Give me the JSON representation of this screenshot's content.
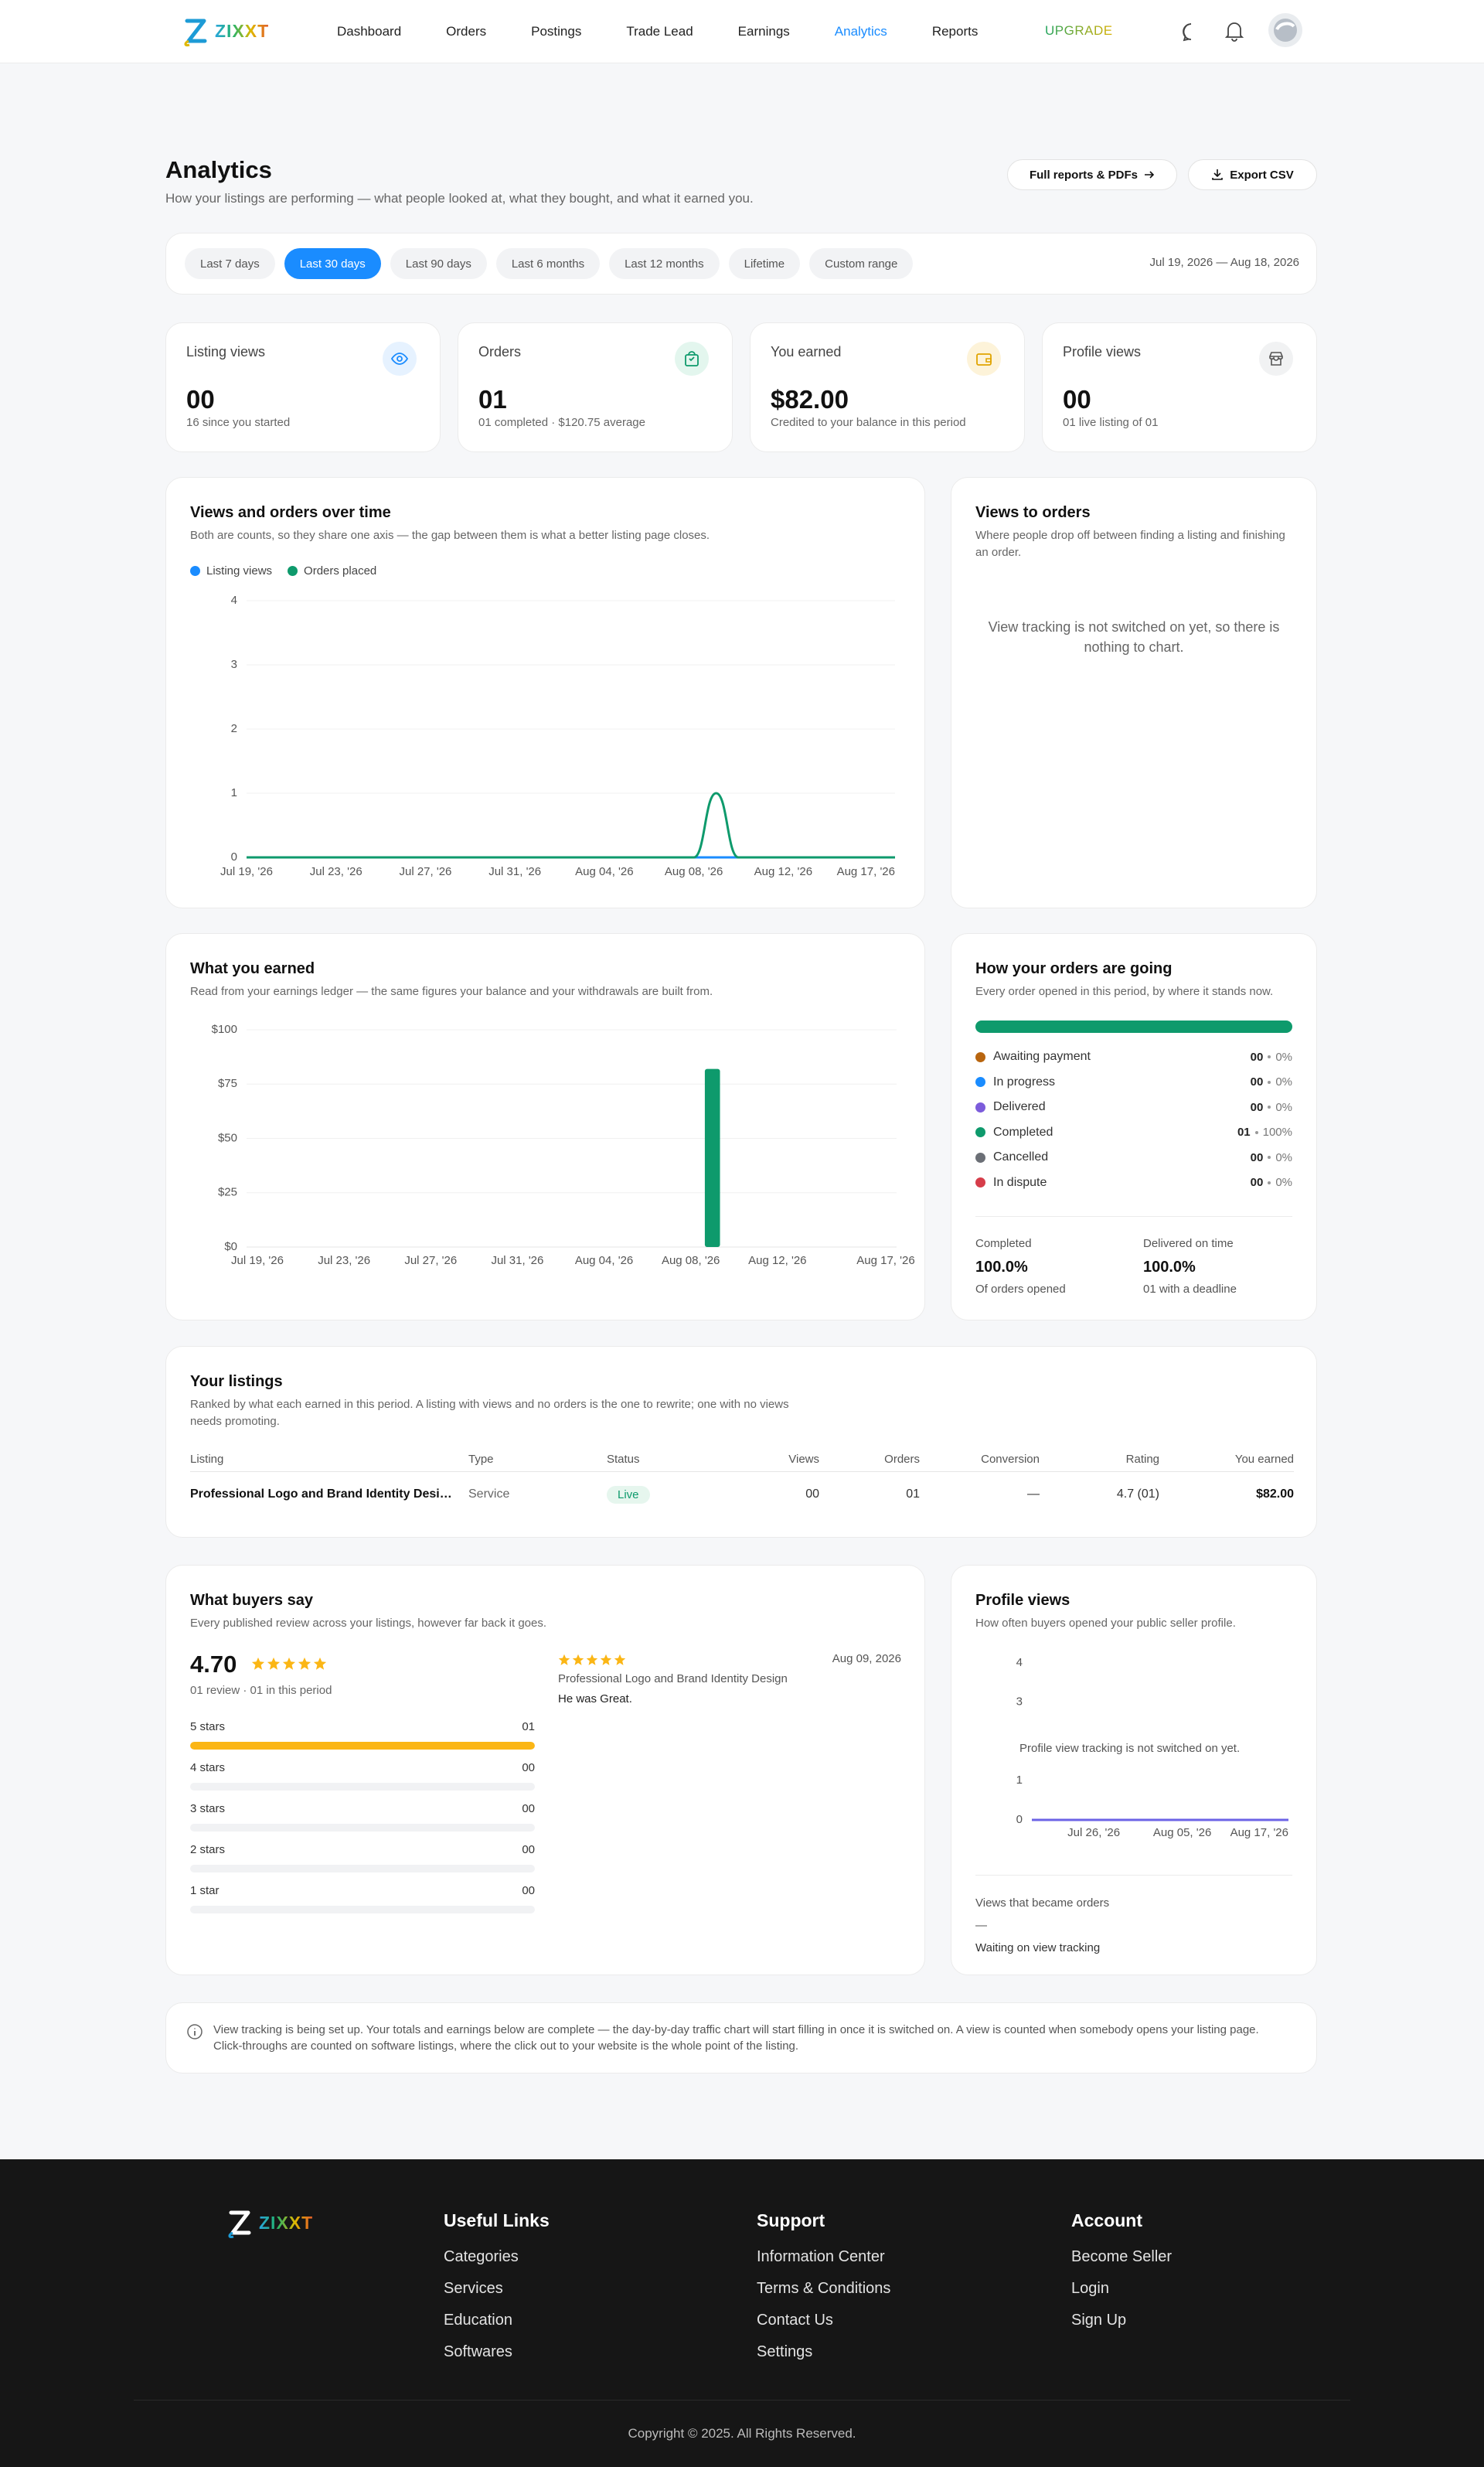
{
  "nav": {
    "brand": "ZIXXT",
    "items": [
      "Dashboard",
      "Orders",
      "Postings",
      "Trade Lead",
      "Earnings",
      "Analytics",
      "Reports"
    ],
    "active": 5,
    "upgrade": "UPGRADE"
  },
  "header": {
    "title": "Analytics",
    "subtitle": "How your listings are performing — what people looked at, what they bought, and what it earned you.",
    "actions": [
      "Full reports & PDFs",
      "Export CSV"
    ]
  },
  "filters": {
    "ranges": [
      "Last 7 days",
      "Last 30 days",
      "Last 90 days",
      "Last 6 months",
      "Last 12 months",
      "Lifetime",
      "Custom range"
    ],
    "active": 1,
    "date_range": "Jul 19, 2026 — Aug 18, 2026"
  },
  "stats": [
    {
      "label": "Listing views",
      "value": "00",
      "note": "16 since you started"
    },
    {
      "label": "Orders",
      "value": "01",
      "note": "01 completed · $120.75 average"
    },
    {
      "label": "You earned",
      "value": "$82.00",
      "note": "Credited to your balance in this period"
    },
    {
      "label": "Profile views",
      "value": "00",
      "note": "01 live listing of 01"
    }
  ],
  "views_to_orders": {
    "title": "Views to orders",
    "subtitle": "Where people drop off between finding a listing and finishing an order.",
    "empty": "View tracking is not switched on yet, so there is nothing to chart."
  },
  "orders_status": {
    "title": "How your orders are going",
    "subtitle": "Every order opened in this period, by where it stands now.",
    "statuses": [
      {
        "name": "Awaiting payment",
        "color": "#b8650f",
        "count": "00",
        "share": 0,
        "share_label": "0%"
      },
      {
        "name": "In progress",
        "color": "#1a8cff",
        "count": "00",
        "share": 0,
        "share_label": "0%"
      },
      {
        "name": "Delivered",
        "color": "#7c5cdb",
        "count": "00",
        "share": 0,
        "share_label": "0%"
      },
      {
        "name": "Completed",
        "color": "#0e9a6c",
        "count": "01",
        "share": 100,
        "share_label": "100%"
      },
      {
        "name": "Cancelled",
        "color": "#6b6f76",
        "count": "00",
        "share": 0,
        "share_label": "0%"
      },
      {
        "name": "In dispute",
        "color": "#d63d4a",
        "count": "00",
        "share": 0,
        "share_label": "0%"
      }
    ],
    "summary": [
      {
        "label": "Completed",
        "value": "100.0%",
        "note": "Of orders opened"
      },
      {
        "label": "Delivered on time",
        "value": "100.0%",
        "note": "01 with a deadline"
      }
    ]
  },
  "listings": {
    "title": "Your listings",
    "subtitle": "Ranked by what each earned in this period. A listing with views and no orders is the one to rewrite; one with no views needs promoting.",
    "columns": [
      "Listing",
      "Type",
      "Status",
      "Views",
      "Orders",
      "Conversion",
      "Rating",
      "You earned"
    ],
    "rows": [
      [
        "Professional Logo and Brand Identity Design",
        "Service",
        "Live",
        "00",
        "01",
        "—",
        "4.7 (01)",
        "$82.00"
      ]
    ]
  },
  "reviews": {
    "title": "What buyers say",
    "subtitle": "Every published review across your listings, however far back it goes.",
    "average": "4.70",
    "summary": "01 review · 01 in this period",
    "breakdown": [
      {
        "label": "5 stars",
        "count": "01",
        "share": 100
      },
      {
        "label": "4 stars",
        "count": "00",
        "share": 0
      },
      {
        "label": "3 stars",
        "count": "00",
        "share": 0
      },
      {
        "label": "2 stars",
        "count": "00",
        "share": 0
      },
      {
        "label": "1 star",
        "count": "00",
        "share": 0
      }
    ],
    "items": [
      {
        "date": "Aug 09, 2026",
        "listing": "Professional Logo and Brand Identity Design",
        "text": "He was Great."
      }
    ]
  },
  "profile": {
    "note": "Profile view tracking is not switched on yet.",
    "conversion_label": "Views that became orders",
    "conversion_value": "—",
    "conversion_note": "Waiting on view tracking"
  },
  "notice": "View tracking is being set up. Your totals and earnings below are complete — the day-by-day traffic chart will start filling in once it is switched on. A view is counted when somebody opens your listing page. Click-throughs are counted on software listings, where the click out to your website is the whole point of the listing.",
  "footer": {
    "brand": "ZIXXT",
    "columns": [
      {
        "title": "Useful Links",
        "links": [
          "Categories",
          "Services",
          "Education",
          "Softwares"
        ]
      },
      {
        "title": "Support",
        "links": [
          "Information Center",
          "Terms & Conditions",
          "Contact Us",
          "Settings"
        ]
      },
      {
        "title": "Account",
        "links": [
          "Become Seller",
          "Login",
          "Sign Up"
        ]
      }
    ],
    "copyright": "Copyright © 2025. All Rights Reserved."
  },
  "chart_data": [
    {
      "type": "line",
      "title": "Views and orders over time",
      "subtitle": "Both are counts, so they share one axis — the gap between them is what a better listing page closes.",
      "categories": [
        "Jul 19, '26",
        null,
        null,
        null,
        "Jul 23, '26",
        null,
        null,
        null,
        "Jul 27, '26",
        null,
        null,
        null,
        "Jul 31, '26",
        null,
        null,
        null,
        "Aug 04, '26",
        null,
        null,
        null,
        "Aug 08, '26",
        null,
        null,
        null,
        "Aug 12, '26",
        null,
        null,
        null,
        null,
        "Aug 17, '26"
      ],
      "series": [
        {
          "name": "Listing views",
          "color": "#1a8cff",
          "values": [
            0,
            0,
            0,
            0,
            0,
            0,
            0,
            0,
            0,
            0,
            0,
            0,
            0,
            0,
            0,
            0,
            0,
            0,
            0,
            0,
            0,
            0,
            0,
            0,
            0,
            0,
            0,
            0,
            0,
            0
          ]
        },
        {
          "name": "Orders placed",
          "color": "#0e9a6c",
          "values": [
            0,
            0,
            0,
            0,
            0,
            0,
            0,
            0,
            0,
            0,
            0,
            0,
            0,
            0,
            0,
            0,
            0,
            0,
            0,
            0,
            0,
            1,
            0,
            0,
            0,
            0,
            0,
            0,
            0,
            0
          ]
        }
      ],
      "ylim": [
        0,
        4
      ],
      "yticks": [
        0,
        1,
        2,
        3,
        4
      ],
      "grid": true,
      "smooth": true,
      "legend": "top-left"
    },
    {
      "type": "bar",
      "title": "What you earned",
      "subtitle": "Read from your earnings ledger — the same figures your balance and your withdrawals are built from.",
      "categories": [
        "Jul 19, '26",
        null,
        null,
        null,
        "Jul 23, '26",
        null,
        null,
        null,
        "Jul 27, '26",
        null,
        null,
        null,
        "Jul 31, '26",
        null,
        null,
        null,
        "Aug 04, '26",
        null,
        null,
        null,
        "Aug 08, '26",
        null,
        null,
        null,
        "Aug 12, '26",
        null,
        null,
        null,
        null,
        "Aug 17, '26"
      ],
      "values": [
        0,
        0,
        0,
        0,
        0,
        0,
        0,
        0,
        0,
        0,
        0,
        0,
        0,
        0,
        0,
        0,
        0,
        0,
        0,
        0,
        0,
        82,
        0,
        0,
        0,
        0,
        0,
        0,
        0,
        0
      ],
      "color": "#0e9a6c",
      "ylim": [
        0,
        100
      ],
      "yticks": [
        {
          "value": 0,
          "label": "$0"
        },
        {
          "value": 25,
          "label": "$25"
        },
        {
          "value": 50,
          "label": "$50"
        },
        {
          "value": 75,
          "label": "$75"
        },
        {
          "value": 100,
          "label": "$100"
        }
      ],
      "grid": true
    },
    {
      "type": "line",
      "title": "Profile views",
      "subtitle": "How often buyers opened your public seller profile.",
      "categories": [
        null,
        null,
        null,
        null,
        null,
        null,
        null,
        "Jul 26, '26",
        null,
        null,
        null,
        null,
        null,
        null,
        null,
        null,
        null,
        "Aug 05, '26",
        null,
        null,
        null,
        null,
        null,
        null,
        null,
        null,
        null,
        null,
        null,
        "Aug 17, '26"
      ],
      "values": [
        0,
        0,
        0,
        0,
        0,
        0,
        0,
        0,
        0,
        0,
        0,
        0,
        0,
        0,
        0,
        0,
        0,
        0,
        0,
        0,
        0,
        0,
        0,
        0,
        0,
        0,
        0,
        0,
        0,
        0
      ],
      "color": "#6c63e6",
      "ylim": [
        0,
        4
      ],
      "yticks": [
        0,
        1,
        3,
        4
      ],
      "grid": false
    }
  ]
}
